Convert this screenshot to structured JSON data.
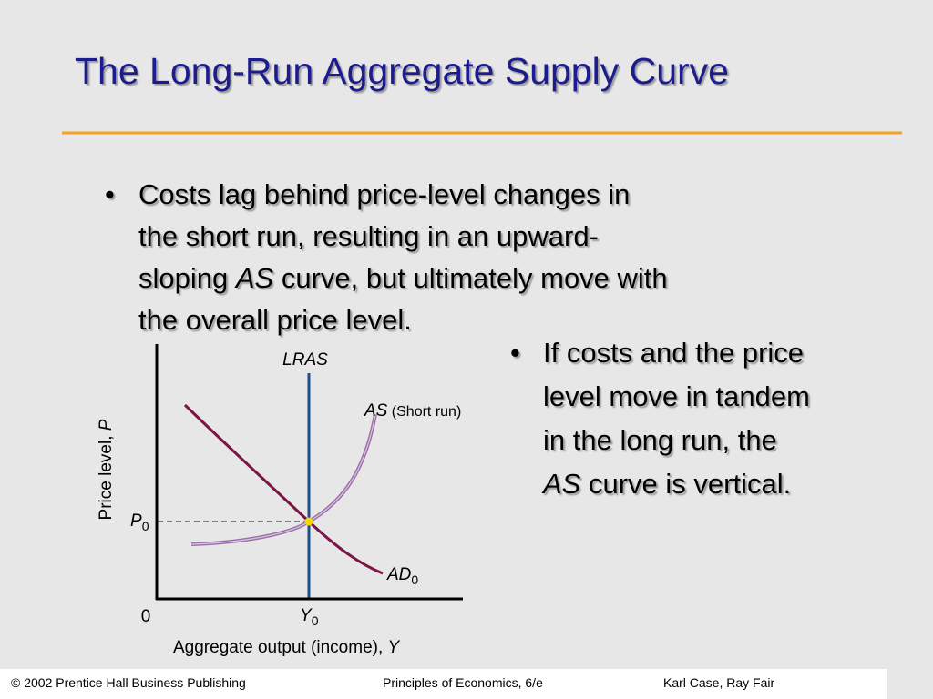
{
  "title": "The Long-Run Aggregate Supply Curve",
  "bullets": [
    {
      "lines": [
        [
          "Costs lag behind price-level changes in"
        ],
        [
          "the short run, resulting in an upward-"
        ],
        [
          "sloping ",
          "AS",
          " curve, but ultimately move with"
        ],
        [
          "the overall price level."
        ]
      ]
    },
    {
      "lines": [
        [
          "If costs and the price"
        ],
        [
          "level move in tandem"
        ],
        [
          "in the long run, the"
        ],
        [
          "AS",
          " curve is vertical."
        ]
      ]
    }
  ],
  "diagram": {
    "lras": "LRAS",
    "as_curve": [
      "AS",
      " (Short run)"
    ],
    "ad_curve": [
      "AD",
      "0"
    ],
    "price_point": [
      "P",
      "0"
    ],
    "output_point": [
      "Y",
      "0"
    ],
    "origin": "0",
    "x_axis_label": [
      "Aggregate output (income), ",
      "Y"
    ],
    "y_axis_label": [
      "Price level, ",
      "P"
    ]
  },
  "footer": {
    "left": "© 2002 Prentice Hall Business Publishing",
    "center": "Principles of Economics, 6/e",
    "right": "Karl Case, Ray Fair"
  }
}
